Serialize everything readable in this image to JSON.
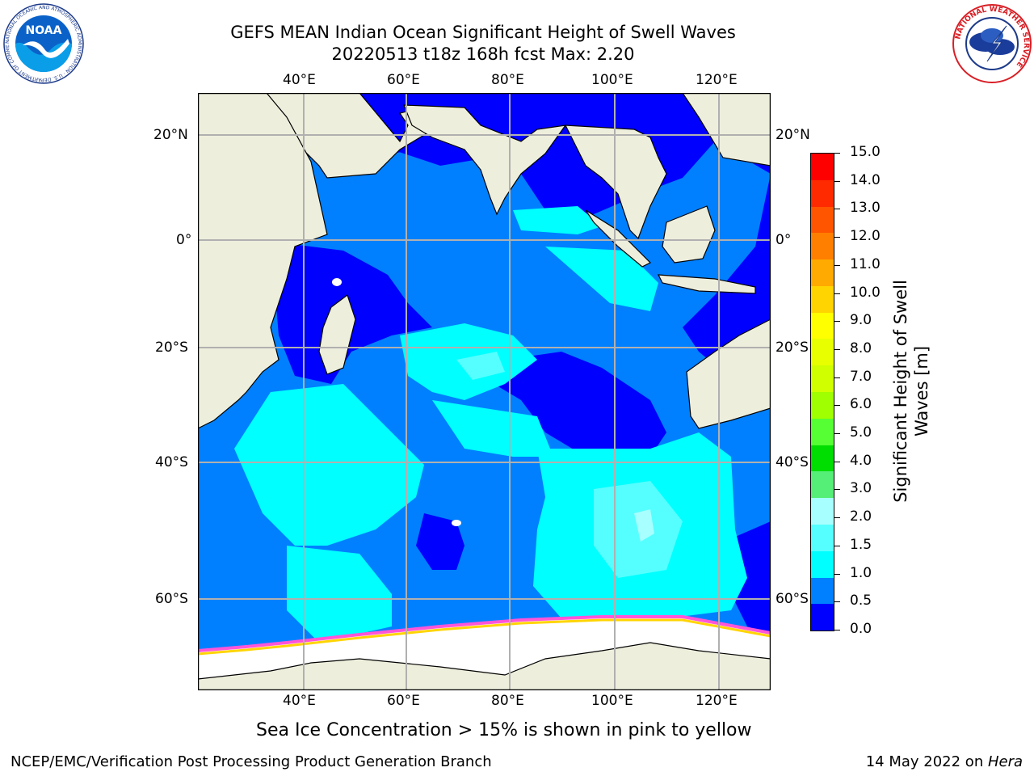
{
  "title": {
    "line1": "GEFS MEAN Indian Ocean Significant Height of Swell Waves",
    "line2": "20220513 t18z 168h fcst   Max: 2.20"
  },
  "map": {
    "lon_ticks": [
      "40°E",
      "60°E",
      "80°E",
      "100°E",
      "120°E"
    ],
    "lat_ticks_left": [
      "20°N",
      "0°",
      "20°S",
      "40°S",
      "60°S"
    ],
    "lat_ticks_right": [
      "20°N",
      "0°",
      "20°S",
      "40°S",
      "60°S"
    ]
  },
  "colorbar": {
    "label_line1": "Significant Height of Swell",
    "label_line2": "Waves [m]",
    "ticks": [
      "15.0",
      "14.0",
      "13.0",
      "12.0",
      "11.0",
      "10.0",
      "9.0",
      "8.0",
      "7.0",
      "6.0",
      "5.0",
      "4.0",
      "3.0",
      "2.0",
      "1.5",
      "1.0",
      "0.5",
      "0.0"
    ],
    "colors": [
      "#ff0000",
      "#ff2a00",
      "#ff5500",
      "#ff7f00",
      "#ffaa00",
      "#ffd400",
      "#ffff00",
      "#e8ff00",
      "#d0ff00",
      "#a0ff00",
      "#55ff33",
      "#00dd00",
      "#55ee77",
      "#a8ffff",
      "#55ffff",
      "#00ffff",
      "#0080ff",
      "#0000ff"
    ]
  },
  "note": "Sea Ice Concentration > 15% is shown in pink to yellow",
  "footer": {
    "left": "NCEP/EMC/Verification Post Processing Product Generation Branch",
    "date": "14 May 2022 on ",
    "machine": "Hera"
  },
  "logos": {
    "noaa_text": "NOAA",
    "noaa_ring": "NATIONAL OCEANIC AND ATMOSPHERIC ADMINISTRATION · U.S. DEPARTMENT OF COMMERCE",
    "nws_ring": "NATIONAL WEATHER SERVICE"
  }
}
